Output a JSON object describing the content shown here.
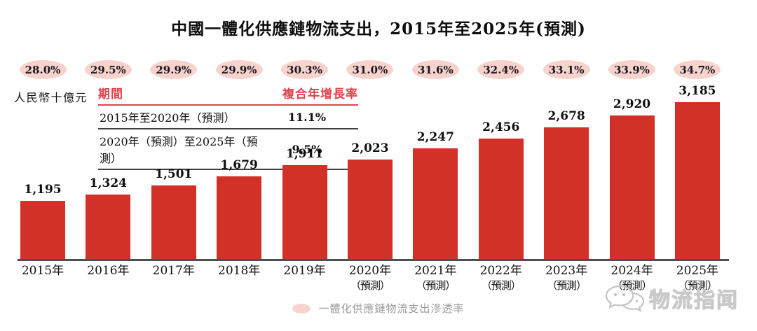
{
  "title": "中國一體化供應鏈物流支出，2015年至2025年(預測)",
  "unit_label": "人民幣十億元",
  "cagr_table": {
    "header": {
      "period": "期間",
      "cagr": "複合年增長率"
    },
    "rows": [
      {
        "period": "2015年至2020年（預測）",
        "cagr": "11.1%"
      },
      {
        "period": "2020年（預測）至2025年（預測）",
        "cagr": "9.5%"
      }
    ]
  },
  "chart_data": {
    "type": "bar",
    "title": "中國一體化供應鏈物流支出，2015年至2025年(預測)",
    "ylabel": "人民幣十億元",
    "categories": [
      {
        "year": "2015年",
        "note": ""
      },
      {
        "year": "2016年",
        "note": ""
      },
      {
        "year": "2017年",
        "note": ""
      },
      {
        "year": "2018年",
        "note": ""
      },
      {
        "year": "2019年",
        "note": ""
      },
      {
        "year": "2020年",
        "note": "（預測）"
      },
      {
        "year": "2021年",
        "note": "（預測）"
      },
      {
        "year": "2022年",
        "note": "（預測）"
      },
      {
        "year": "2023年",
        "note": "（預測）"
      },
      {
        "year": "2024年",
        "note": "（預測）"
      },
      {
        "year": "2025年",
        "note": "（預測）"
      }
    ],
    "values": [
      1195,
      1324,
      1501,
      1679,
      1911,
      2023,
      2247,
      2456,
      2678,
      2920,
      3185
    ],
    "value_labels": [
      "1,195",
      "1,324",
      "1,501",
      "1,679",
      "1,911",
      "2,023",
      "2,247",
      "2,456",
      "2,678",
      "2,920",
      "3,185"
    ],
    "penetration_series": {
      "name": "一體化供應鏈物流支出滲透率",
      "values_pct": [
        28.0,
        29.5,
        29.9,
        29.9,
        30.3,
        31.0,
        31.6,
        32.4,
        33.1,
        33.9,
        34.7
      ],
      "labels": [
        "28.0%",
        "29.5%",
        "29.9%",
        "29.9%",
        "30.3%",
        "31.0%",
        "31.6%",
        "32.4%",
        "33.1%",
        "33.9%",
        "34.7%"
      ]
    },
    "ylim": [
      0,
      3185
    ],
    "grid": false,
    "legend_position": "bottom-center"
  },
  "legend": {
    "marker": "pink-ellipse",
    "label": "一體化供應鏈物流支出滲透率"
  },
  "watermark": {
    "icon": "chat-bubbles-icon",
    "text": "物流指闻"
  },
  "colors": {
    "bar_red": "#d23128",
    "heading_red": "#e2434c",
    "badge_pink": "#f8d3cd",
    "badge_text": "#17171f",
    "axis_line": "#4f4f4f",
    "table_line": "#3f3f3f",
    "legend_gray": "#9a9a9a",
    "watermark_gray": "#c9c9c9"
  }
}
